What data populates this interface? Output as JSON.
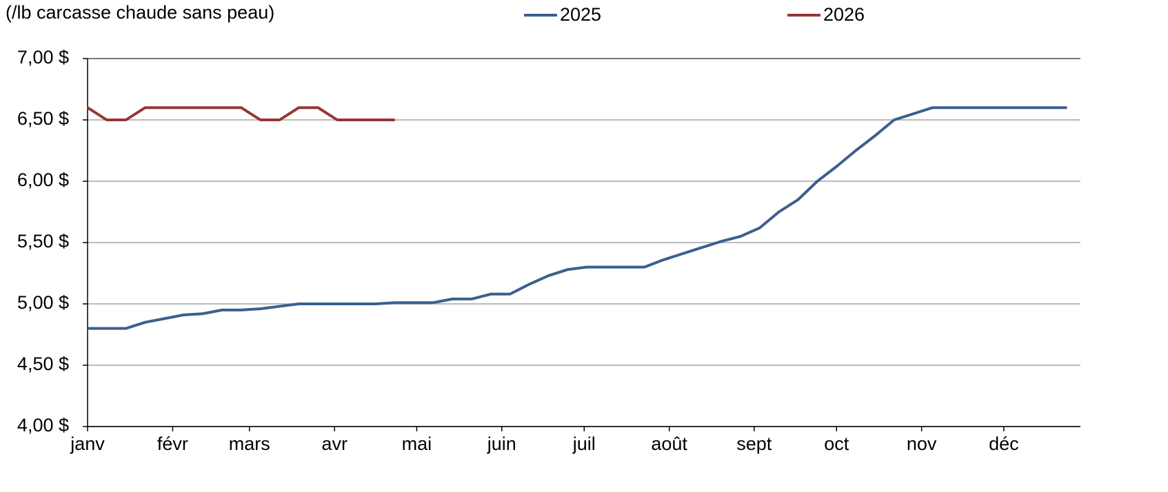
{
  "chart_data": {
    "type": "line",
    "title": "(/lb carcasse chaude sans peau)",
    "x": [
      0,
      1,
      2,
      3,
      4,
      5,
      6,
      7,
      8,
      9,
      10,
      11,
      12,
      13,
      14,
      15,
      16,
      17,
      18,
      19,
      20,
      21,
      22,
      23,
      24,
      25,
      26,
      27,
      28,
      29,
      30,
      31,
      32,
      33,
      34,
      35,
      36,
      37,
      38,
      39,
      40,
      41,
      42,
      43,
      44,
      45,
      46,
      47,
      48,
      49,
      50,
      51
    ],
    "series": [
      {
        "name": "2025",
        "color": "#3b5f8f",
        "values": [
          4.8,
          4.8,
          4.8,
          4.85,
          4.88,
          4.91,
          4.92,
          4.95,
          4.95,
          4.96,
          4.98,
          5.0,
          5.0,
          5.0,
          5.0,
          5.0,
          5.01,
          5.01,
          5.01,
          5.04,
          5.04,
          5.08,
          5.08,
          5.16,
          5.23,
          5.28,
          5.3,
          5.3,
          5.3,
          5.3,
          5.36,
          5.41,
          5.46,
          5.51,
          5.55,
          5.62,
          5.75,
          5.85,
          6.0,
          6.12,
          6.25,
          6.37,
          6.5,
          6.55,
          6.6,
          6.6,
          6.6,
          6.6,
          6.6,
          6.6,
          6.6,
          6.6
        ]
      },
      {
        "name": "2026",
        "color": "#953735",
        "values": [
          6.6,
          6.5,
          6.5,
          6.6,
          6.6,
          6.6,
          6.6,
          6.6,
          6.6,
          6.5,
          6.5,
          6.6,
          6.6,
          6.5,
          6.5,
          6.5,
          6.5,
          null,
          null,
          null,
          null,
          null,
          null,
          null,
          null,
          null,
          null,
          null,
          null,
          null,
          null,
          null,
          null,
          null,
          null,
          null,
          null,
          null,
          null,
          null,
          null,
          null,
          null,
          null,
          null,
          null,
          null,
          null,
          null,
          null,
          null,
          null
        ]
      }
    ],
    "xlim": [
      0,
      51.7
    ],
    "xticks": [
      {
        "value": 0,
        "label": "janv"
      },
      {
        "value": 4.43,
        "label": "févr"
      },
      {
        "value": 8.43,
        "label": "mars"
      },
      {
        "value": 12.86,
        "label": "avr"
      },
      {
        "value": 17.14,
        "label": "mai"
      },
      {
        "value": 21.57,
        "label": "juin"
      },
      {
        "value": 25.86,
        "label": "juil"
      },
      {
        "value": 30.29,
        "label": "août"
      },
      {
        "value": 34.71,
        "label": "sept"
      },
      {
        "value": 39.0,
        "label": "oct"
      },
      {
        "value": 43.43,
        "label": "nov"
      },
      {
        "value": 47.71,
        "label": "déc"
      }
    ],
    "ylim": [
      4,
      7
    ],
    "yticks": [
      {
        "value": 4,
        "label": "4,00 $"
      },
      {
        "value": 4.5,
        "label": "4,50 $"
      },
      {
        "value": 5,
        "label": "5,00 $"
      },
      {
        "value": 5.5,
        "label": "5,50 $"
      },
      {
        "value": 6,
        "label": "6,00 $"
      },
      {
        "value": 6.5,
        "label": "6,50 $"
      },
      {
        "value": 7,
        "label": "7,00 $"
      }
    ],
    "grid": true,
    "legend": "top"
  }
}
